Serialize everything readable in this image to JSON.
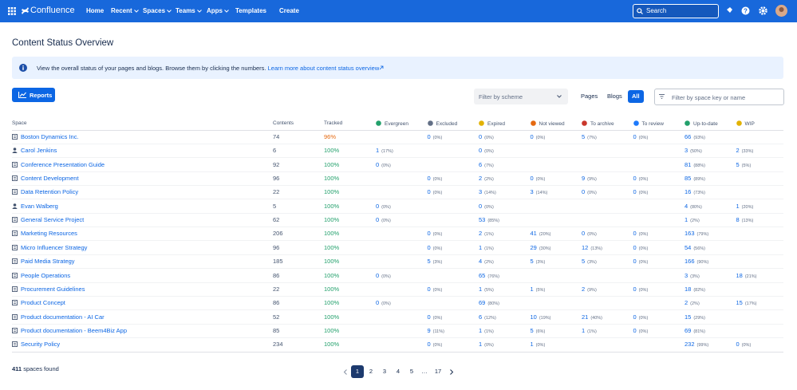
{
  "nav": {
    "product": "Confluence",
    "items": [
      "Home",
      "Recent",
      "Spaces",
      "Teams",
      "Apps",
      "Templates"
    ],
    "create": "Create",
    "search": "Search"
  },
  "page": {
    "title": "Content Status Overview",
    "banner": {
      "text": "View the overall status of your pages and blogs. Browse them by clicking the numbers.",
      "link": "Learn more about content status overview"
    },
    "toolbar": {
      "reports": "Reports",
      "scheme": "Filter by scheme",
      "tabs": [
        "Pages",
        "Blogs",
        "All"
      ],
      "active_tab": 2,
      "filter": "Filter by space key or name"
    }
  },
  "table": {
    "columns": [
      "Space",
      "Contents",
      "Tracked",
      "Evergreen",
      "Excluded",
      "Expired",
      "Not viewed",
      "To archive",
      "To review",
      "Up-to-date",
      "WIP"
    ],
    "rows": [
      {
        "space": "Boston Dynamics Inc.",
        "icon": "space",
        "contents": "74",
        "tracked": "96%",
        "tracked_color": "#e56910",
        "cells": [
          null,
          [
            "0",
            "(0%)"
          ],
          [
            "0",
            "(0%)"
          ],
          [
            "0",
            "(0%)"
          ],
          [
            "5",
            "(7%)"
          ],
          [
            "0",
            "(0%)"
          ],
          [
            "66",
            "(93%)"
          ],
          null
        ]
      },
      {
        "space": "Carol Jenkins",
        "icon": "person",
        "contents": "6",
        "tracked": "100%",
        "cells": [
          [
            "1",
            "(17%)"
          ],
          null,
          [
            "0",
            "(0%)"
          ],
          null,
          null,
          null,
          [
            "3",
            "(50%)"
          ],
          [
            "2",
            "(33%)"
          ]
        ]
      },
      {
        "space": "Conference Presentation Guide",
        "icon": "space",
        "contents": "92",
        "tracked": "100%",
        "cells": [
          [
            "0",
            "(0%)"
          ],
          null,
          [
            "6",
            "(7%)"
          ],
          null,
          null,
          null,
          [
            "81",
            "(88%)"
          ],
          [
            "5",
            "(5%)"
          ]
        ]
      },
      {
        "space": "Content Development",
        "icon": "space",
        "contents": "96",
        "tracked": "100%",
        "cells": [
          null,
          [
            "0",
            "(0%)"
          ],
          [
            "2",
            "(2%)"
          ],
          [
            "0",
            "(0%)"
          ],
          [
            "9",
            "(9%)"
          ],
          [
            "0",
            "(0%)"
          ],
          [
            "85",
            "(89%)"
          ],
          null
        ]
      },
      {
        "space": "Data Retention Policy",
        "icon": "space",
        "contents": "22",
        "tracked": "100%",
        "cells": [
          null,
          [
            "0",
            "(0%)"
          ],
          [
            "3",
            "(14%)"
          ],
          [
            "3",
            "(14%)"
          ],
          [
            "0",
            "(0%)"
          ],
          [
            "0",
            "(0%)"
          ],
          [
            "16",
            "(73%)"
          ],
          null
        ]
      },
      {
        "space": "Evan Walberg",
        "icon": "person",
        "contents": "5",
        "tracked": "100%",
        "cells": [
          [
            "0",
            "(0%)"
          ],
          null,
          [
            "0",
            "(0%)"
          ],
          null,
          null,
          null,
          [
            "4",
            "(80%)"
          ],
          [
            "1",
            "(20%)"
          ]
        ]
      },
      {
        "space": "General Service Project",
        "icon": "space",
        "contents": "62",
        "tracked": "100%",
        "cells": [
          [
            "0",
            "(0%)"
          ],
          null,
          [
            "53",
            "(85%)"
          ],
          null,
          null,
          null,
          [
            "1",
            "(2%)"
          ],
          [
            "8",
            "(13%)"
          ]
        ]
      },
      {
        "space": "Marketing Resources",
        "icon": "space",
        "contents": "206",
        "tracked": "100%",
        "cells": [
          null,
          [
            "0",
            "(0%)"
          ],
          [
            "2",
            "(1%)"
          ],
          [
            "41",
            "(20%)"
          ],
          [
            "0",
            "(0%)"
          ],
          [
            "0",
            "(0%)"
          ],
          [
            "163",
            "(79%)"
          ],
          null
        ]
      },
      {
        "space": "Micro Influencer Strategy",
        "icon": "space",
        "contents": "96",
        "tracked": "100%",
        "cells": [
          null,
          [
            "0",
            "(0%)"
          ],
          [
            "1",
            "(1%)"
          ],
          [
            "29",
            "(30%)"
          ],
          [
            "12",
            "(13%)"
          ],
          [
            "0",
            "(0%)"
          ],
          [
            "54",
            "(56%)"
          ],
          null
        ]
      },
      {
        "space": "Paid Media Strategy",
        "icon": "space",
        "contents": "185",
        "tracked": "100%",
        "cells": [
          null,
          [
            "5",
            "(3%)"
          ],
          [
            "4",
            "(2%)"
          ],
          [
            "5",
            "(3%)"
          ],
          [
            "5",
            "(3%)"
          ],
          [
            "0",
            "(0%)"
          ],
          [
            "166",
            "(90%)"
          ],
          null
        ]
      },
      {
        "space": "People Operations",
        "icon": "space",
        "contents": "86",
        "tracked": "100%",
        "cells": [
          [
            "0",
            "(0%)"
          ],
          null,
          [
            "65",
            "(76%)"
          ],
          null,
          null,
          null,
          [
            "3",
            "(3%)"
          ],
          [
            "18",
            "(21%)"
          ]
        ]
      },
      {
        "space": "Procurement Guidelines",
        "icon": "space",
        "contents": "22",
        "tracked": "100%",
        "cells": [
          null,
          [
            "0",
            "(0%)"
          ],
          [
            "1",
            "(5%)"
          ],
          [
            "1",
            "(5%)"
          ],
          [
            "2",
            "(9%)"
          ],
          [
            "0",
            "(0%)"
          ],
          [
            "18",
            "(82%)"
          ],
          null
        ]
      },
      {
        "space": "Product Concept",
        "icon": "space",
        "contents": "86",
        "tracked": "100%",
        "cells": [
          [
            "0",
            "(0%)"
          ],
          null,
          [
            "69",
            "(80%)"
          ],
          null,
          null,
          null,
          [
            "2",
            "(2%)"
          ],
          [
            "15",
            "(17%)"
          ]
        ]
      },
      {
        "space": "Product documentation - AI Car",
        "icon": "space",
        "contents": "52",
        "tracked": "100%",
        "cells": [
          null,
          [
            "0",
            "(0%)"
          ],
          [
            "6",
            "(12%)"
          ],
          [
            "10",
            "(19%)"
          ],
          [
            "21",
            "(40%)"
          ],
          [
            "0",
            "(0%)"
          ],
          [
            "15",
            "(29%)"
          ],
          null
        ]
      },
      {
        "space": "Product documentation - Beem4Biz App",
        "icon": "space",
        "contents": "85",
        "tracked": "100%",
        "cells": [
          null,
          [
            "9",
            "(11%)"
          ],
          [
            "1",
            "(1%)"
          ],
          [
            "5",
            "(6%)"
          ],
          [
            "1",
            "(1%)"
          ],
          [
            "0",
            "(0%)"
          ],
          [
            "69",
            "(81%)"
          ],
          null
        ]
      },
      {
        "space": "Security Policy",
        "icon": "space",
        "contents": "234",
        "tracked": "100%",
        "cells": [
          null,
          [
            "0",
            "(0%)"
          ],
          [
            "1",
            "(0%)"
          ],
          [
            "1",
            "(0%)"
          ],
          null,
          null,
          [
            "232",
            "(99%)"
          ],
          [
            "0",
            "(0%)"
          ]
        ]
      }
    ]
  },
  "footer": {
    "count": "411",
    "text": "spaces found"
  },
  "pagination": {
    "pages": [
      "1",
      "2",
      "3",
      "4",
      "5",
      "…",
      "17"
    ],
    "current": 0
  }
}
